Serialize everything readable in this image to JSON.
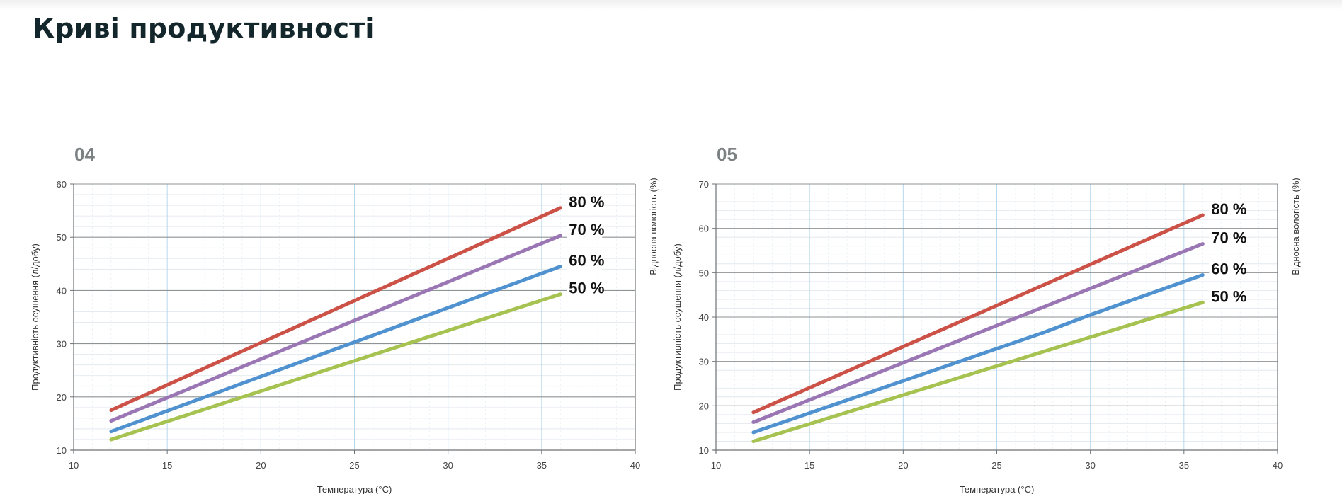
{
  "page": {
    "title": "Криві продуктивності"
  },
  "chart_data": [
    {
      "type": "line",
      "id": "04",
      "xlabel": "Температура (°C)",
      "ylabel": "Продуктивність осушення (л/добу)",
      "y2label": "Відносна вологість (%)",
      "xlim": [
        10,
        40
      ],
      "ylim": [
        10,
        60
      ],
      "xticks": [
        10,
        15,
        20,
        25,
        30,
        35,
        40
      ],
      "yticks": [
        10,
        20,
        30,
        40,
        50,
        60
      ],
      "grid": true,
      "series": [
        {
          "name": "80 %",
          "color": "#cc5147",
          "x": [
            12,
            36
          ],
          "y": [
            17.5,
            55.5
          ]
        },
        {
          "name": "70 %",
          "color": "#9a77b4",
          "x": [
            12,
            36
          ],
          "y": [
            15.5,
            50.3
          ]
        },
        {
          "name": "60 %",
          "color": "#4f92cf",
          "x": [
            12,
            36
          ],
          "y": [
            13.5,
            44.5
          ]
        },
        {
          "name": "50 %",
          "color": "#a6c352",
          "x": [
            12,
            36
          ],
          "y": [
            12,
            39.3
          ]
        }
      ]
    },
    {
      "type": "line",
      "id": "05",
      "xlabel": "Температура (°C)",
      "ylabel": "Продуктивність осушення (л/добу)",
      "y2label": "Відносна вологість (%)",
      "xlim": [
        10,
        40
      ],
      "ylim": [
        10,
        70
      ],
      "xticks": [
        10,
        15,
        20,
        25,
        30,
        35,
        40
      ],
      "yticks": [
        10,
        20,
        30,
        40,
        50,
        60,
        70
      ],
      "grid": true,
      "series": [
        {
          "name": "80 %",
          "color": "#cc5147",
          "x": [
            12,
            36
          ],
          "y": [
            18.5,
            63
          ]
        },
        {
          "name": "70 %",
          "color": "#9a77b4",
          "x": [
            12,
            36
          ],
          "y": [
            16.3,
            56.5
          ]
        },
        {
          "name": "60 %",
          "color": "#4f92cf",
          "x": [
            12,
            27.5,
            30,
            36
          ],
          "y": [
            14,
            36.5,
            40.5,
            49.5
          ]
        },
        {
          "name": "50 %",
          "color": "#a6c352",
          "x": [
            12,
            36
          ],
          "y": [
            12,
            43.3
          ]
        }
      ]
    }
  ]
}
